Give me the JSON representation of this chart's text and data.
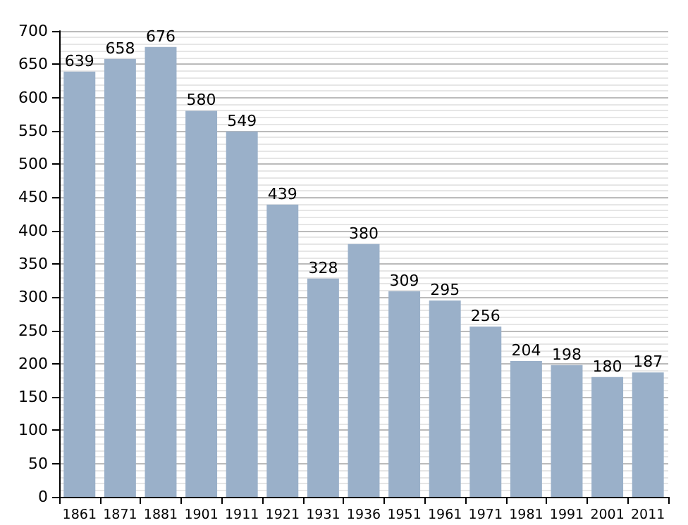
{
  "chart_data": {
    "type": "bar",
    "categories": [
      "1861",
      "1871",
      "1881",
      "1901",
      "1911",
      "1921",
      "1931",
      "1936",
      "1951",
      "1961",
      "1971",
      "1981",
      "1991",
      "2001",
      "2011"
    ],
    "values": [
      639,
      658,
      676,
      580,
      549,
      439,
      328,
      380,
      309,
      295,
      256,
      204,
      198,
      180,
      187
    ],
    "color": "#9ab0c9",
    "ylim": [
      0,
      700
    ],
    "yticks": [
      0,
      50,
      100,
      150,
      200,
      250,
      300,
      350,
      400,
      450,
      500,
      550,
      600,
      650,
      700
    ],
    "grid": "y",
    "data_labels": true
  }
}
